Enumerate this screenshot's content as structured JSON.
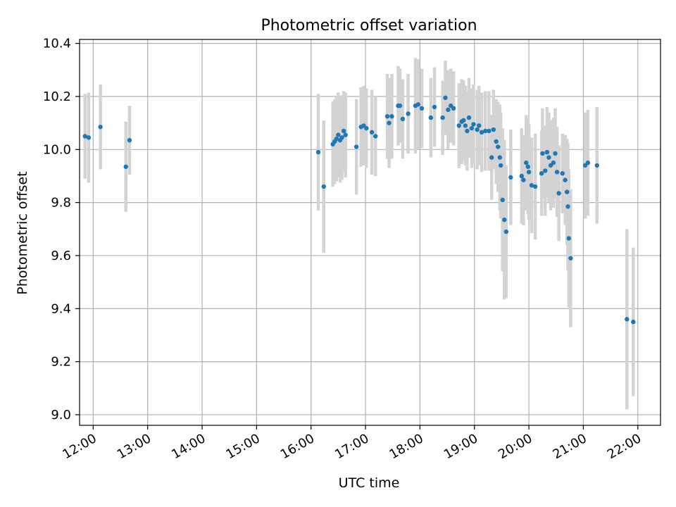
{
  "chart_data": {
    "type": "scatter",
    "title": "Photometric offset variation",
    "xlabel": "UTC time",
    "ylabel": "Photometric offset",
    "xlim": [
      "11:45",
      "22:25"
    ],
    "ylim": [
      8.96,
      10.415
    ],
    "xticks": [
      "12:00",
      "13:00",
      "14:00",
      "15:00",
      "16:00",
      "17:00",
      "18:00",
      "19:00",
      "20:00",
      "21:00",
      "22:00"
    ],
    "yticks": [
      "9.0",
      "9.2",
      "9.4",
      "9.6",
      "9.8",
      "10.0",
      "10.2",
      "10.4"
    ],
    "grid": true,
    "colors": {
      "point": "#1f77b4",
      "errorbar": "#d3d3d3",
      "grid": "#b0b0b0"
    },
    "series": [
      {
        "points": [
          {
            "x": "11:51",
            "y": 10.05,
            "yerr": 0.16
          },
          {
            "x": "11:55",
            "y": 10.045,
            "yerr": 0.17
          },
          {
            "x": "12:08",
            "y": 10.085,
            "yerr": 0.16
          },
          {
            "x": "12:36",
            "y": 9.935,
            "yerr": 0.17
          },
          {
            "x": "12:40",
            "y": 10.035,
            "yerr": 0.13
          },
          {
            "x": "16:08",
            "y": 9.99,
            "yerr": 0.22
          },
          {
            "x": "16:14",
            "y": 9.86,
            "yerr": 0.25
          },
          {
            "x": "16:24",
            "y": 10.02,
            "yerr": 0.16
          },
          {
            "x": "16:26",
            "y": 10.03,
            "yerr": 0.16
          },
          {
            "x": "16:28",
            "y": 10.04,
            "yerr": 0.16
          },
          {
            "x": "16:30",
            "y": 10.055,
            "yerr": 0.16
          },
          {
            "x": "16:32",
            "y": 10.035,
            "yerr": 0.16
          },
          {
            "x": "16:34",
            "y": 10.045,
            "yerr": 0.16
          },
          {
            "x": "16:36",
            "y": 10.07,
            "yerr": 0.15
          },
          {
            "x": "16:38",
            "y": 10.055,
            "yerr": 0.16
          },
          {
            "x": "16:50",
            "y": 10.01,
            "yerr": 0.18
          },
          {
            "x": "16:55",
            "y": 10.085,
            "yerr": 0.15
          },
          {
            "x": "16:58",
            "y": 10.09,
            "yerr": 0.15
          },
          {
            "x": "17:01",
            "y": 10.08,
            "yerr": 0.15
          },
          {
            "x": "17:07",
            "y": 10.065,
            "yerr": 0.16
          },
          {
            "x": "17:11",
            "y": 10.05,
            "yerr": 0.15
          },
          {
            "x": "17:24",
            "y": 10.125,
            "yerr": 0.16
          },
          {
            "x": "17:26",
            "y": 10.1,
            "yerr": 0.17
          },
          {
            "x": "17:29",
            "y": 10.125,
            "yerr": 0.16
          },
          {
            "x": "17:36",
            "y": 10.165,
            "yerr": 0.15
          },
          {
            "x": "17:38",
            "y": 10.165,
            "yerr": 0.14
          },
          {
            "x": "17:41",
            "y": 10.115,
            "yerr": 0.15
          },
          {
            "x": "17:47",
            "y": 10.135,
            "yerr": 0.15
          },
          {
            "x": "17:55",
            "y": 10.165,
            "yerr": 0.18
          },
          {
            "x": "17:58",
            "y": 10.17,
            "yerr": 0.17
          },
          {
            "x": "18:02",
            "y": 10.155,
            "yerr": 0.15
          },
          {
            "x": "18:12",
            "y": 10.12,
            "yerr": 0.15
          },
          {
            "x": "18:16",
            "y": 10.16,
            "yerr": 0.15
          },
          {
            "x": "18:25",
            "y": 10.12,
            "yerr": 0.14
          },
          {
            "x": "18:28",
            "y": 10.195,
            "yerr": 0.14
          },
          {
            "x": "18:31",
            "y": 10.15,
            "yerr": 0.15
          },
          {
            "x": "18:34",
            "y": 10.165,
            "yerr": 0.14
          },
          {
            "x": "18:37",
            "y": 10.155,
            "yerr": 0.14
          },
          {
            "x": "18:43",
            "y": 10.09,
            "yerr": 0.16
          },
          {
            "x": "18:46",
            "y": 10.105,
            "yerr": 0.16
          },
          {
            "x": "18:48",
            "y": 10.11,
            "yerr": 0.15
          },
          {
            "x": "18:50",
            "y": 10.09,
            "yerr": 0.15
          },
          {
            "x": "18:52",
            "y": 10.07,
            "yerr": 0.15
          },
          {
            "x": "18:54",
            "y": 10.12,
            "yerr": 0.15
          },
          {
            "x": "18:57",
            "y": 10.08,
            "yerr": 0.15
          },
          {
            "x": "18:59",
            "y": 10.095,
            "yerr": 0.15
          },
          {
            "x": "19:03",
            "y": 10.075,
            "yerr": 0.15
          },
          {
            "x": "19:05",
            "y": 10.09,
            "yerr": 0.15
          },
          {
            "x": "19:08",
            "y": 10.065,
            "yerr": 0.15
          },
          {
            "x": "19:12",
            "y": 10.07,
            "yerr": 0.15
          },
          {
            "x": "19:16",
            "y": 10.07,
            "yerr": 0.15
          },
          {
            "x": "19:19",
            "y": 9.97,
            "yerr": 0.16
          },
          {
            "x": "19:21",
            "y": 10.075,
            "yerr": 0.15
          },
          {
            "x": "19:24",
            "y": 10.03,
            "yerr": 0.16
          },
          {
            "x": "19:26",
            "y": 10.01,
            "yerr": 0.17
          },
          {
            "x": "19:28",
            "y": 9.97,
            "yerr": 0.2
          },
          {
            "x": "19:29",
            "y": 9.94,
            "yerr": 0.2
          },
          {
            "x": "19:31",
            "y": 9.81,
            "yerr": 0.27
          },
          {
            "x": "19:33",
            "y": 9.735,
            "yerr": 0.3
          },
          {
            "x": "19:35",
            "y": 9.69,
            "yerr": 0.25
          },
          {
            "x": "19:40",
            "y": 9.895,
            "yerr": 0.18
          },
          {
            "x": "19:52",
            "y": 9.9,
            "yerr": 0.18
          },
          {
            "x": "19:54",
            "y": 9.885,
            "yerr": 0.17
          },
          {
            "x": "19:57",
            "y": 9.95,
            "yerr": 0.18
          },
          {
            "x": "19:59",
            "y": 9.935,
            "yerr": 0.18
          },
          {
            "x": "20:00",
            "y": 9.915,
            "yerr": 0.18
          },
          {
            "x": "20:03",
            "y": 9.865,
            "yerr": 0.18
          },
          {
            "x": "20:07",
            "y": 9.86,
            "yerr": 0.2
          },
          {
            "x": "20:14",
            "y": 9.91,
            "yerr": 0.16
          },
          {
            "x": "20:15",
            "y": 9.985,
            "yerr": 0.17
          },
          {
            "x": "20:18",
            "y": 9.92,
            "yerr": 0.17
          },
          {
            "x": "20:20",
            "y": 9.99,
            "yerr": 0.17
          },
          {
            "x": "20:22",
            "y": 9.97,
            "yerr": 0.17
          },
          {
            "x": "20:24",
            "y": 9.94,
            "yerr": 0.17
          },
          {
            "x": "20:27",
            "y": 9.95,
            "yerr": 0.17
          },
          {
            "x": "20:29",
            "y": 9.985,
            "yerr": 0.17
          },
          {
            "x": "20:31",
            "y": 9.915,
            "yerr": 0.17
          },
          {
            "x": "20:33",
            "y": 9.835,
            "yerr": 0.18
          },
          {
            "x": "20:37",
            "y": 9.91,
            "yerr": 0.15
          },
          {
            "x": "20:40",
            "y": 9.885,
            "yerr": 0.17
          },
          {
            "x": "20:42",
            "y": 9.84,
            "yerr": 0.2
          },
          {
            "x": "20:43",
            "y": 9.785,
            "yerr": 0.24
          },
          {
            "x": "20:44",
            "y": 9.665,
            "yerr": 0.26
          },
          {
            "x": "20:46",
            "y": 9.59,
            "yerr": 0.26
          },
          {
            "x": "21:02",
            "y": 9.94,
            "yerr": 0.2
          },
          {
            "x": "21:05",
            "y": 9.95,
            "yerr": 0.2
          },
          {
            "x": "21:15",
            "y": 9.94,
            "yerr": 0.22
          },
          {
            "x": "21:48",
            "y": 9.36,
            "yerr": 0.34
          },
          {
            "x": "21:55",
            "y": 9.35,
            "yerr": 0.28
          }
        ]
      }
    ]
  }
}
